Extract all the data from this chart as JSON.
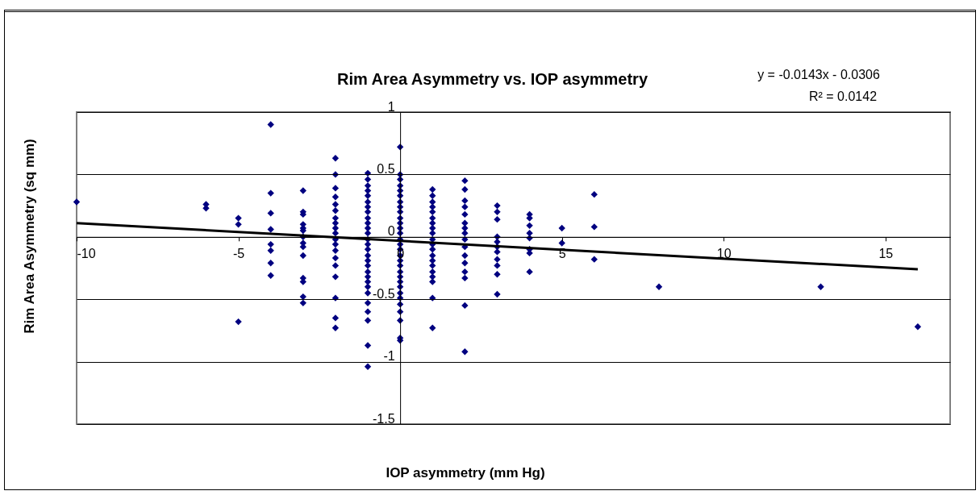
{
  "chart_data": {
    "type": "scatter",
    "title": "Rim Area Asymmetry vs. IOP asymmetry",
    "xlabel": "IOP asymmetry (mm Hg)",
    "ylabel": "Rim Area Asymmetry (sq mm)",
    "annotations": [
      "y = -0.0143x - 0.0306",
      "R² = 0.0142"
    ],
    "xlim": [
      -10,
      17
    ],
    "xticks": [
      -10,
      -5,
      0,
      5,
      10,
      15
    ],
    "ylim": [
      -1.5,
      1
    ],
    "yticks": [
      -1.5,
      -1,
      -0.5,
      0,
      0.5,
      1
    ],
    "grid": "y",
    "series": [
      {
        "marker": "diamond",
        "color": "#000080",
        "x": [
          -10,
          -6,
          -6,
          -5,
          -5,
          -5,
          -4,
          -4,
          -4,
          -4,
          -4,
          -4,
          -4,
          -4,
          -3,
          -3,
          -3,
          -3,
          -3,
          -3,
          -3,
          -3,
          -3,
          -3,
          -3,
          -3,
          -3,
          -3,
          -2,
          -2,
          -2,
          -2,
          -2,
          -2,
          -2,
          -2,
          -2,
          -2,
          -2,
          -2,
          -2,
          -2,
          -2,
          -2,
          -2,
          -2,
          -2,
          -1,
          -1,
          -1,
          -1,
          -1,
          -1,
          -1,
          -1,
          -1,
          -1,
          -1,
          -1,
          -1,
          -1,
          -1,
          -1,
          -1,
          -1,
          -1,
          -1,
          -1,
          -1,
          -1,
          -1,
          -1,
          -1,
          -1,
          -1,
          0,
          0,
          0,
          0,
          0,
          0,
          0,
          0,
          0,
          0,
          0,
          0,
          0,
          0,
          0,
          0,
          0,
          0,
          0,
          0,
          0,
          0,
          0,
          0,
          0,
          0,
          0,
          0,
          0,
          0,
          1,
          1,
          1,
          1,
          1,
          1,
          1,
          1,
          1,
          1,
          1,
          1,
          1,
          1,
          1,
          1,
          1,
          1,
          1,
          1,
          2,
          2,
          2,
          2,
          2,
          2,
          2,
          2,
          2,
          2,
          2,
          2,
          2,
          2,
          2,
          2,
          3,
          3,
          3,
          3,
          3,
          3,
          3,
          3,
          3,
          3,
          3,
          4,
          4,
          4,
          4,
          4,
          4,
          4,
          4,
          5,
          5,
          6,
          6,
          6,
          8,
          13,
          16
        ],
        "values": [
          0.28,
          0.26,
          0.23,
          0.15,
          0.1,
          -0.68,
          0.9,
          0.35,
          0.19,
          0.06,
          -0.06,
          -0.11,
          -0.21,
          -0.31,
          0.37,
          0.2,
          0.18,
          0.1,
          0.07,
          0.05,
          0.0,
          -0.05,
          -0.08,
          -0.15,
          -0.33,
          -0.36,
          -0.48,
          -0.53,
          0.63,
          0.5,
          0.39,
          0.32,
          0.26,
          0.21,
          0.15,
          0.11,
          0.07,
          0.03,
          -0.02,
          -0.06,
          -0.11,
          -0.17,
          -0.23,
          -0.32,
          -0.49,
          -0.65,
          -0.73,
          0.51,
          0.46,
          0.41,
          0.37,
          0.33,
          0.28,
          0.24,
          0.2,
          0.15,
          0.11,
          0.07,
          0.03,
          -0.02,
          -0.06,
          -0.1,
          -0.15,
          -0.19,
          -0.23,
          -0.28,
          -0.32,
          -0.36,
          -0.4,
          -0.45,
          -0.53,
          -0.6,
          -0.67,
          -0.87,
          -1.04,
          0.72,
          0.5,
          0.46,
          0.41,
          0.37,
          0.33,
          0.28,
          0.24,
          0.2,
          0.15,
          0.11,
          0.07,
          0.03,
          -0.02,
          -0.06,
          -0.1,
          -0.15,
          -0.19,
          -0.23,
          -0.28,
          -0.32,
          -0.36,
          -0.4,
          -0.45,
          -0.49,
          -0.54,
          -0.6,
          -0.67,
          -0.81,
          -0.83,
          0.38,
          0.33,
          0.28,
          0.24,
          0.2,
          0.15,
          0.11,
          0.07,
          0.03,
          -0.02,
          -0.06,
          -0.1,
          -0.15,
          -0.19,
          -0.23,
          -0.28,
          -0.32,
          -0.36,
          -0.49,
          -0.73,
          0.45,
          0.38,
          0.29,
          0.24,
          0.18,
          0.11,
          0.07,
          0.03,
          -0.02,
          -0.08,
          -0.15,
          -0.21,
          -0.28,
          -0.33,
          -0.55,
          -0.92,
          0.25,
          0.2,
          0.14,
          0.0,
          -0.04,
          -0.08,
          -0.12,
          -0.18,
          -0.23,
          -0.3,
          -0.46,
          0.18,
          0.15,
          0.09,
          0.03,
          -0.01,
          -0.1,
          -0.13,
          -0.28,
          0.07,
          -0.05,
          0.34,
          0.08,
          -0.18,
          -0.4,
          -0.4,
          -0.72
        ]
      },
      {
        "type": "line",
        "color": "#000000",
        "x": [
          -10,
          16
        ],
        "values": [
          0.11,
          -0.26
        ]
      }
    ]
  }
}
